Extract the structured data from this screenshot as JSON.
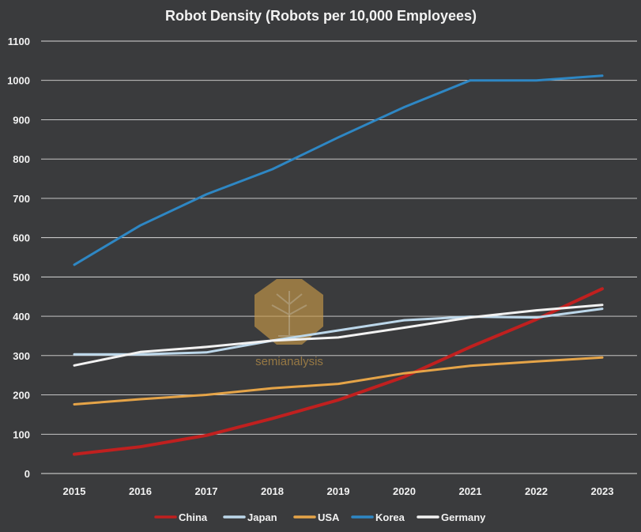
{
  "chart_data": {
    "type": "line",
    "title": "Robot Density (Robots per 10,000 Employees)",
    "xlabel": "",
    "ylabel": "",
    "categories": [
      "2015",
      "2016",
      "2017",
      "2018",
      "2019",
      "2020",
      "2021",
      "2022",
      "2023"
    ],
    "ylim": [
      0,
      1100
    ],
    "yticks": [
      0,
      100,
      200,
      300,
      400,
      500,
      600,
      700,
      800,
      900,
      1000,
      1100
    ],
    "grid": true,
    "legend_position": "bottom",
    "series": [
      {
        "name": "China",
        "color": "#c0201f",
        "values": [
          49,
          68,
          97,
          140,
          187,
          246,
          322,
          392,
          470
        ]
      },
      {
        "name": "Japan",
        "color": "#bcd7ea",
        "values": [
          303,
          303,
          308,
          338,
          364,
          390,
          399,
          397,
          419
        ]
      },
      {
        "name": "USA",
        "color": "#e5a448",
        "values": [
          176,
          189,
          200,
          217,
          228,
          255,
          274,
          285,
          295
        ]
      },
      {
        "name": "Korea",
        "color": "#2e87c4",
        "values": [
          531,
          631,
          710,
          774,
          855,
          932,
          1000,
          1000,
          1012
        ]
      },
      {
        "name": "Germany",
        "color": "#f2f2f2",
        "values": [
          275,
          309,
          322,
          338,
          346,
          371,
          397,
          415,
          429
        ]
      }
    ]
  },
  "watermark": {
    "text": "semianalysis",
    "icon": "tree-seal-icon",
    "color": "#c89a48"
  }
}
